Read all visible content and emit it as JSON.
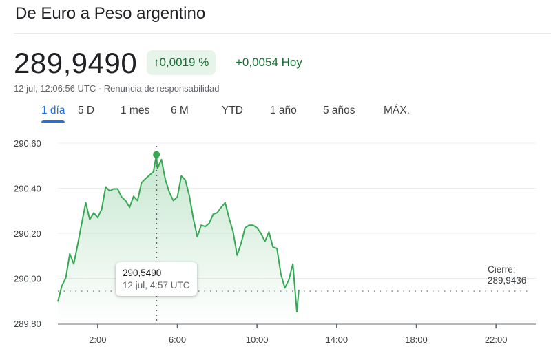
{
  "header": {
    "title": "De Euro a Peso argentino",
    "price": "289,9490",
    "change_percent": "0,0019 %",
    "change_percent_icon": "arrow-up-icon",
    "change_abs": "+0,0054 Hoy",
    "timestamp": "12 jul, 12:06:56 UTC",
    "separator": " · ",
    "disclaimer": "Renuncia de responsabilidad"
  },
  "tabs": [
    {
      "label": "1 día",
      "active": true
    },
    {
      "label": "5 D"
    },
    {
      "label": "1 mes"
    },
    {
      "label": "6 M"
    },
    {
      "label": "YTD"
    },
    {
      "label": "1 año"
    },
    {
      "label": "5 años"
    },
    {
      "label": "MÁX."
    }
  ],
  "tooltip": {
    "value": "290,5490",
    "time": "12 jul, 4:57 UTC"
  },
  "close": {
    "label": "Cierre:",
    "value": "289,9436"
  },
  "colors": {
    "line": "#34a853",
    "positive": "#137333",
    "accent": "#1a73e8"
  },
  "chart_data": {
    "type": "line",
    "xlim": [
      "0:00",
      "24:00"
    ],
    "ylim": [
      289.8,
      290.6
    ],
    "yticks": [
      {
        "v": 290.6,
        "label": "290,60"
      },
      {
        "v": 290.4,
        "label": "290,40"
      },
      {
        "v": 290.2,
        "label": "290,20"
      },
      {
        "v": 290.0,
        "label": "290,00"
      },
      {
        "v": 289.8,
        "label": "289,80"
      }
    ],
    "xticks": [
      "2:00",
      "6:00",
      "10:00",
      "14:00",
      "18:00",
      "22:00"
    ],
    "grid": true,
    "previous_close": 289.9436,
    "hover": {
      "time": "4:57",
      "value": 290.549
    },
    "points": [
      [
        "0:00",
        289.897
      ],
      [
        "0:12",
        289.967
      ],
      [
        "0:24",
        290.003
      ],
      [
        "0:36",
        290.109
      ],
      [
        "0:48",
        290.064
      ],
      [
        "1:00",
        290.152
      ],
      [
        "1:12",
        290.245
      ],
      [
        "1:24",
        290.336
      ],
      [
        "1:36",
        290.261
      ],
      [
        "1:48",
        290.291
      ],
      [
        "2:00",
        290.27
      ],
      [
        "2:12",
        290.306
      ],
      [
        "2:24",
        290.406
      ],
      [
        "2:36",
        290.388
      ],
      [
        "2:48",
        290.397
      ],
      [
        "3:00",
        290.397
      ],
      [
        "3:12",
        290.361
      ],
      [
        "3:24",
        290.345
      ],
      [
        "3:36",
        290.315
      ],
      [
        "3:48",
        290.364
      ],
      [
        "4:00",
        290.345
      ],
      [
        "4:12",
        290.424
      ],
      [
        "4:24",
        290.442
      ],
      [
        "4:36",
        290.458
      ],
      [
        "4:48",
        290.473
      ],
      [
        "4:57",
        290.549
      ],
      [
        "5:00",
        290.488
      ],
      [
        "5:12",
        290.527
      ],
      [
        "5:24",
        290.436
      ],
      [
        "5:36",
        290.382
      ],
      [
        "5:48",
        290.345
      ],
      [
        "6:00",
        290.361
      ],
      [
        "6:12",
        290.455
      ],
      [
        "6:24",
        290.436
      ],
      [
        "6:36",
        290.367
      ],
      [
        "6:48",
        290.267
      ],
      [
        "7:00",
        290.185
      ],
      [
        "7:12",
        290.236
      ],
      [
        "7:24",
        290.23
      ],
      [
        "7:36",
        290.245
      ],
      [
        "7:48",
        290.285
      ],
      [
        "8:00",
        290.291
      ],
      [
        "8:12",
        290.315
      ],
      [
        "8:24",
        290.336
      ],
      [
        "8:36",
        290.267
      ],
      [
        "8:48",
        290.206
      ],
      [
        "9:00",
        290.103
      ],
      [
        "9:12",
        290.155
      ],
      [
        "9:24",
        290.224
      ],
      [
        "9:36",
        290.236
      ],
      [
        "9:48",
        290.236
      ],
      [
        "10:00",
        290.224
      ],
      [
        "10:12",
        290.2
      ],
      [
        "10:24",
        290.164
      ],
      [
        "10:36",
        290.206
      ],
      [
        "10:48",
        290.139
      ],
      [
        "11:00",
        290.133
      ],
      [
        "11:12",
        290.018
      ],
      [
        "11:24",
        289.958
      ],
      [
        "11:36",
        289.994
      ],
      [
        "11:48",
        290.064
      ],
      [
        "12:00",
        289.852
      ],
      [
        "12:06",
        289.949
      ]
    ]
  }
}
